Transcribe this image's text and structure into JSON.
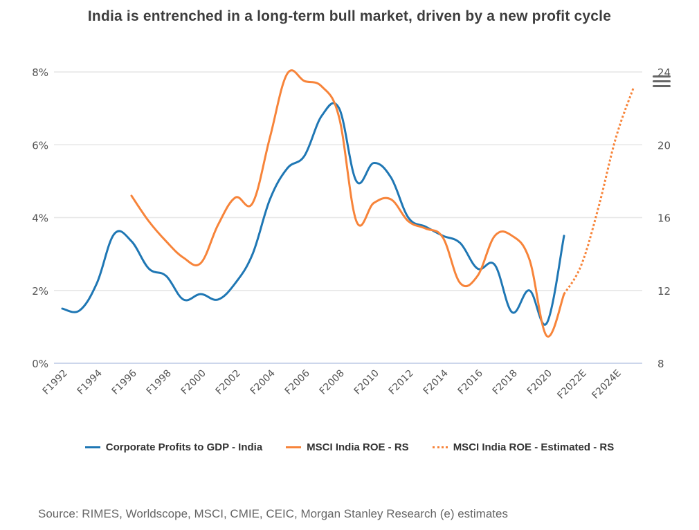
{
  "chart_data": {
    "type": "line",
    "title": "India is entrenched in a long-term bull market, driven by a new profit cycle",
    "source": "Source: RIMES, Worldscope, MSCI, CMIE, CEIC, Morgan Stanley Research (e) estimates",
    "x_tick_labels": [
      "F1992",
      "F1994",
      "F1996",
      "F1998",
      "F2000",
      "F2002",
      "F2004",
      "F2006",
      "F2008",
      "F2010",
      "F2012",
      "F2014",
      "F2016",
      "F2018",
      "F2020",
      "F2022E",
      "F2024E"
    ],
    "x_range": [
      1992,
      2025
    ],
    "y_left": {
      "ticks": [
        "0%",
        "2%",
        "4%",
        "6%",
        "8%"
      ],
      "range": [
        0,
        8
      ],
      "unit": "%"
    },
    "y_right": {
      "ticks": [
        "8",
        "12",
        "16",
        "20",
        "24"
      ],
      "range": [
        8,
        24
      ]
    },
    "grid": true,
    "legend_position": "bottom",
    "series": [
      {
        "name": "Corporate Profits to GDP - India",
        "axis": "left",
        "color": "#1f77b4",
        "style": "solid",
        "x": [
          1992,
          1993,
          1994,
          1995,
          1996,
          1997,
          1998,
          1999,
          2000,
          2001,
          2002,
          2003,
          2004,
          2005,
          2006,
          2007,
          2008,
          2009,
          2010,
          2011,
          2012,
          2013,
          2014,
          2015,
          2016,
          2017,
          2018,
          2019,
          2020,
          2021
        ],
        "values": [
          1.5,
          1.45,
          2.2,
          3.55,
          3.35,
          2.6,
          2.4,
          1.75,
          1.9,
          1.75,
          2.2,
          3.0,
          4.5,
          5.35,
          5.7,
          6.8,
          7.0,
          5.0,
          5.5,
          5.1,
          4.0,
          3.75,
          3.5,
          3.3,
          2.6,
          2.7,
          1.4,
          2.0,
          1.1,
          3.5
        ]
      },
      {
        "name": "MSCI India ROE - RS",
        "axis": "right",
        "color": "#f7843a",
        "style": "solid",
        "x": [
          1996,
          1997,
          1998,
          1999,
          2000,
          2001,
          2002,
          2003,
          2004,
          2005,
          2006,
          2007,
          2008,
          2009,
          2010,
          2011,
          2012,
          2013,
          2014,
          2015,
          2016,
          2017,
          2018,
          2019,
          2020,
          2021
        ],
        "values": [
          17.2,
          15.8,
          14.7,
          13.8,
          13.5,
          15.6,
          17.1,
          16.8,
          20.4,
          23.9,
          23.5,
          23.2,
          21.5,
          15.8,
          16.8,
          17.0,
          15.8,
          15.4,
          14.9,
          12.4,
          12.8,
          15.0,
          15.0,
          13.7,
          9.5,
          11.8
        ]
      },
      {
        "name": "MSCI India ROE - Estimated - RS",
        "axis": "right",
        "color": "#f7843a",
        "style": "dotted",
        "x": [
          2021,
          2022,
          2023,
          2024,
          2025
        ],
        "values": [
          11.8,
          13.4,
          16.6,
          20.4,
          23.1
        ]
      }
    ]
  },
  "ui": {
    "menu_icon": "hamburger-menu-icon"
  }
}
